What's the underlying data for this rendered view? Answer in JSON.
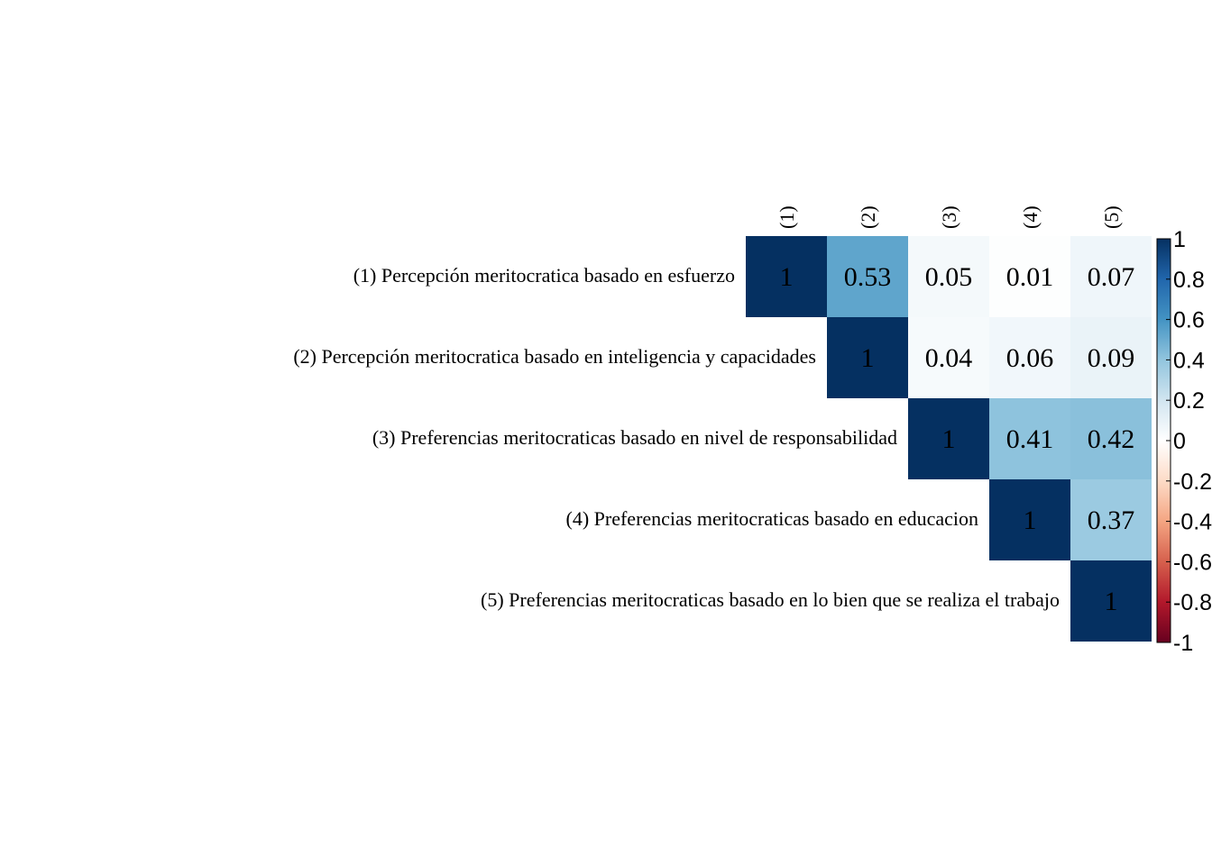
{
  "chart_data": {
    "type": "heatmap",
    "variables": [
      "(1)",
      "(2)",
      "(3)",
      "(4)",
      "(5)"
    ],
    "row_labels": [
      "(1) Percepción meritocratica basado en esfuerzo",
      "(2) Percepción meritocratica basado en inteligencia y capacidades",
      "(3) Preferencias meritocraticas basado en nivel de responsabilidad",
      "(4) Preferencias meritocraticas basado en educacion",
      "(5) Preferencias meritocraticas basado en lo bien que se realiza el trabajo"
    ],
    "col_labels": [
      "(1)",
      "(2)",
      "(3)",
      "(4)",
      "(5)"
    ],
    "matrix": [
      [
        1,
        0.53,
        0.05,
        0.01,
        0.07
      ],
      [
        null,
        1,
        0.04,
        0.06,
        0.09
      ],
      [
        null,
        null,
        1,
        0.41,
        0.42
      ],
      [
        null,
        null,
        null,
        1,
        0.37
      ],
      [
        null,
        null,
        null,
        null,
        1
      ]
    ],
    "display_labels": [
      [
        "1",
        "0.53",
        "0.05",
        "0.01",
        "0.07"
      ],
      [
        null,
        "1",
        "0.04",
        "0.06",
        "0.09"
      ],
      [
        null,
        null,
        "1",
        "0.41",
        "0.42"
      ],
      [
        null,
        null,
        null,
        "1",
        "0.37"
      ],
      [
        null,
        null,
        null,
        null,
        "1"
      ]
    ],
    "layout": "upper-triangle",
    "colorbar": {
      "range": [
        -1,
        1
      ],
      "ticks": [
        "1",
        "0.8",
        "0.6",
        "0.4",
        "0.2",
        "0",
        "-0.2",
        "-0.4",
        "-0.6",
        "-0.8",
        "-1"
      ],
      "tick_values": [
        1,
        0.8,
        0.6,
        0.4,
        0.2,
        0,
        -0.2,
        -0.4,
        -0.6,
        -0.8,
        -1
      ],
      "placement": "right",
      "colors": [
        "#67001F",
        "#B2182B",
        "#D6604D",
        "#F4A582",
        "#FDDBC7",
        "#FFFFFF",
        "#D1E5F0",
        "#92C5DE",
        "#4393C3",
        "#2166AC",
        "#053061"
      ]
    },
    "grid": false
  }
}
